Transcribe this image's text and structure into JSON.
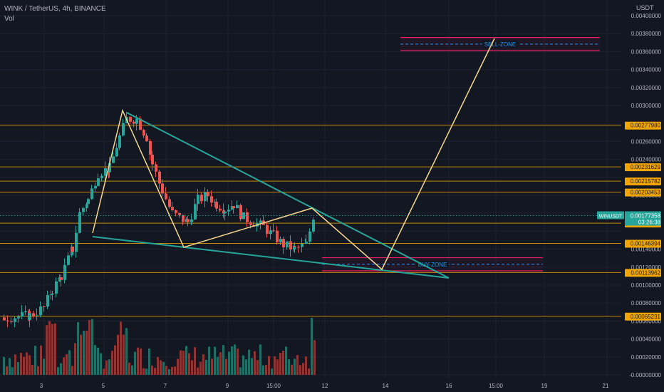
{
  "header": {
    "symbol_line": "WINK / TetherUS, 4h, BINANCE",
    "indicator": "Vol"
  },
  "currency": "USDT",
  "symbol_tag": {
    "label": "WINUSDT",
    "price": "0.00177358",
    "countdown": "03:26:38"
  },
  "chart_data": {
    "type": "candlestick",
    "y_axis_ticks": [
      "0.00400000",
      "0.00380000",
      "0.00360000",
      "0.00340000",
      "0.00320000",
      "0.00300000",
      "0.00260000",
      "0.00240000",
      "0.00200000",
      "0.00140000",
      "0.00120000",
      "0.00100000",
      "0.00080000",
      "0.00060000",
      "0.00040000",
      "0.00020000",
      "-0.00000000"
    ],
    "x_axis_ticks": [
      "3",
      "5",
      "7",
      "9",
      "15:00",
      "12",
      "14",
      "16",
      "15:00",
      "19",
      "21"
    ],
    "levels": [
      "0.00277980",
      "0.00231629",
      "0.00215782",
      "0.00203453",
      "0.00168907",
      "0.00146394",
      "0.00113962",
      "0.00065231"
    ],
    "zones": [
      {
        "label": "SELL-ZONE"
      },
      {
        "label": "BUY-ZONE"
      }
    ],
    "colors": {
      "up": "#26a69a",
      "down": "#ef5350",
      "level": "#f0a500",
      "zone": "#e91e63",
      "projection": "#f5d78e",
      "triangle": "#26a69a"
    }
  }
}
